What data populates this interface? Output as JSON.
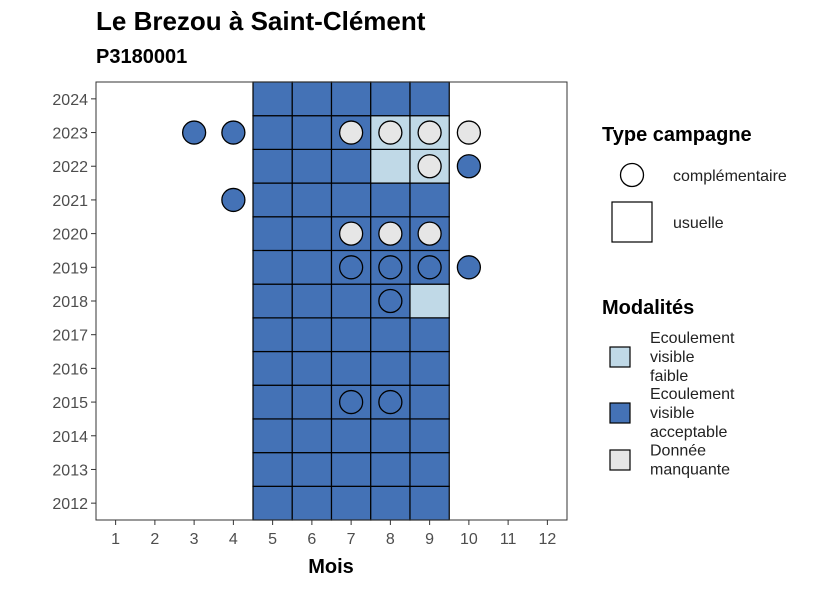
{
  "chart_data": {
    "type": "heatmap",
    "title": "Le Brezou à Saint-Clément",
    "subtitle": "P3180001",
    "xlabel": "Mois",
    "ylabel": "",
    "x_ticks": [
      1,
      2,
      3,
      4,
      5,
      6,
      7,
      8,
      9,
      10,
      11,
      12
    ],
    "y_ticks": [
      2012,
      2013,
      2014,
      2015,
      2016,
      2017,
      2018,
      2019,
      2020,
      2021,
      2022,
      2023,
      2024
    ],
    "xlim": [
      0.5,
      12.5
    ],
    "ylim": [
      2011.5,
      2024.5
    ],
    "grid": false,
    "legend_position": "right",
    "colors": {
      "Ecoulement visible faible": "#c0d9e7",
      "Ecoulement visible acceptable": "#4472b6",
      "Donnée manquante": "#e6e6e6"
    },
    "legend_type": {
      "title": "Type campagne",
      "items": [
        {
          "key": "complementaire",
          "label": "complémentaire",
          "shape": "circle"
        },
        {
          "key": "usuelle",
          "label": "usuelle",
          "shape": "square"
        }
      ]
    },
    "legend_modalites": {
      "title": "Modalités",
      "items": [
        {
          "key": "Ecoulement visible faible",
          "lines": [
            "Ecoulement",
            "visible",
            "faible"
          ],
          "color": "#c0d9e7"
        },
        {
          "key": "Ecoulement visible acceptable",
          "lines": [
            "Ecoulement",
            "visible",
            "acceptable"
          ],
          "color": "#4472b6"
        },
        {
          "key": "Donnée manquante",
          "lines": [
            "Donnée",
            "manquante"
          ],
          "color": "#e6e6e6"
        }
      ]
    },
    "tiles_usuelle": {
      "months": [
        5,
        6,
        7,
        8,
        9
      ],
      "years": [
        2012,
        2013,
        2014,
        2015,
        2016,
        2017,
        2018,
        2019,
        2020,
        2021,
        2022,
        2023,
        2024
      ],
      "default": "Ecoulement visible acceptable",
      "exceptions": [
        {
          "month": 8,
          "year": 2023,
          "value": "Ecoulement visible faible"
        },
        {
          "month": 9,
          "year": 2023,
          "value": "Ecoulement visible faible"
        },
        {
          "month": 8,
          "year": 2022,
          "value": "Ecoulement visible faible"
        },
        {
          "month": 9,
          "year": 2022,
          "value": "Ecoulement visible faible"
        },
        {
          "month": 9,
          "year": 2018,
          "value": "Ecoulement visible faible"
        }
      ]
    },
    "points_complementaire": [
      {
        "month": 3,
        "year": 2023,
        "value": "Ecoulement visible acceptable"
      },
      {
        "month": 4,
        "year": 2023,
        "value": "Ecoulement visible acceptable"
      },
      {
        "month": 7,
        "year": 2023,
        "value": "Donnée manquante"
      },
      {
        "month": 8,
        "year": 2023,
        "value": "Donnée manquante"
      },
      {
        "month": 9,
        "year": 2023,
        "value": "Donnée manquante"
      },
      {
        "month": 10,
        "year": 2023,
        "value": "Donnée manquante"
      },
      {
        "month": 9,
        "year": 2022,
        "value": "Donnée manquante"
      },
      {
        "month": 10,
        "year": 2022,
        "value": "Ecoulement visible acceptable"
      },
      {
        "month": 4,
        "year": 2021,
        "value": "Ecoulement visible acceptable"
      },
      {
        "month": 7,
        "year": 2020,
        "value": "Donnée manquante"
      },
      {
        "month": 8,
        "year": 2020,
        "value": "Donnée manquante"
      },
      {
        "month": 9,
        "year": 2020,
        "value": "Donnée manquante"
      },
      {
        "month": 7,
        "year": 2019,
        "value": "Ecoulement visible acceptable"
      },
      {
        "month": 8,
        "year": 2019,
        "value": "Ecoulement visible acceptable"
      },
      {
        "month": 9,
        "year": 2019,
        "value": "Ecoulement visible acceptable"
      },
      {
        "month": 10,
        "year": 2019,
        "value": "Ecoulement visible acceptable"
      },
      {
        "month": 8,
        "year": 2018,
        "value": "Ecoulement visible acceptable"
      },
      {
        "month": 7,
        "year": 2015,
        "value": "Ecoulement visible acceptable"
      },
      {
        "month": 8,
        "year": 2015,
        "value": "Ecoulement visible acceptable"
      }
    ]
  }
}
